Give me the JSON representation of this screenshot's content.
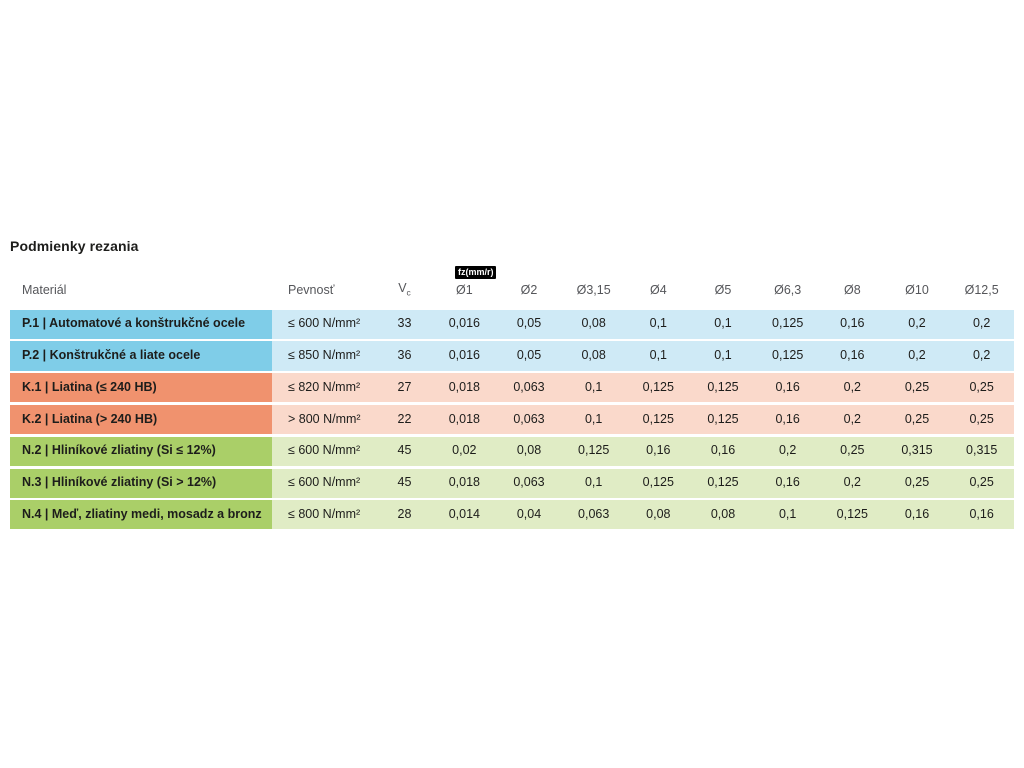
{
  "title": "Podmienky rezania",
  "chart_data": {
    "type": "table",
    "title": "Podmienky rezania",
    "unit_badge": "fz(mm/r)",
    "column_headers": {
      "material": "Materiál",
      "strength": "Pevnosť",
      "vc_base": "V",
      "vc_sub": "c",
      "diameters": [
        "Ø1",
        "Ø2",
        "Ø3,15",
        "Ø4",
        "Ø5",
        "Ø6,3",
        "Ø8",
        "Ø10",
        "Ø12,5"
      ]
    },
    "rows": [
      {
        "group": "steel",
        "material": "P.1 | Automatové a konštrukčné ocele",
        "strength": "≤ 600 N/mm²",
        "vc": "33",
        "fz_values": [
          "0,016",
          "0,05",
          "0,08",
          "0,1",
          "0,1",
          "0,125",
          "0,16",
          "0,2",
          "0,2"
        ]
      },
      {
        "group": "steel",
        "material": "P.2 | Konštrukčné a liate ocele",
        "strength": "≤ 850 N/mm²",
        "vc": "36",
        "fz_values": [
          "0,016",
          "0,05",
          "0,08",
          "0,1",
          "0,1",
          "0,125",
          "0,16",
          "0,2",
          "0,2"
        ]
      },
      {
        "group": "cast-iron",
        "material": "K.1 | Liatina (≤ 240 HB)",
        "strength": "≤ 820 N/mm²",
        "vc": "27",
        "fz_values": [
          "0,018",
          "0,063",
          "0,1",
          "0,125",
          "0,125",
          "0,16",
          "0,2",
          "0,25",
          "0,25"
        ]
      },
      {
        "group": "cast-iron",
        "material": "K.2 | Liatina (> 240 HB)",
        "strength": "> 800 N/mm²",
        "vc": "22",
        "fz_values": [
          "0,018",
          "0,063",
          "0,1",
          "0,125",
          "0,125",
          "0,16",
          "0,2",
          "0,25",
          "0,25"
        ]
      },
      {
        "group": "non-ferrous",
        "material": "N.2 | Hliníkové zliatiny (Si ≤ 12%)",
        "strength": "≤ 600 N/mm²",
        "vc": "45",
        "fz_values": [
          "0,02",
          "0,08",
          "0,125",
          "0,16",
          "0,16",
          "0,2",
          "0,25",
          "0,315",
          "0,315"
        ]
      },
      {
        "group": "non-ferrous",
        "material": "N.3 | Hliníkové zliatiny (Si > 12%)",
        "strength": "≤ 600 N/mm²",
        "vc": "45",
        "fz_values": [
          "0,018",
          "0,063",
          "0,1",
          "0,125",
          "0,125",
          "0,16",
          "0,2",
          "0,25",
          "0,25"
        ]
      },
      {
        "group": "non-ferrous",
        "material": "N.4 | Meď, zliatiny medi, mosadz a bronz",
        "strength": "≤ 800 N/mm²",
        "vc": "28",
        "fz_values": [
          "0,014",
          "0,04",
          "0,063",
          "0,08",
          "0,08",
          "0,1",
          "0,125",
          "0,16",
          "0,16"
        ]
      }
    ]
  },
  "colors": {
    "steel_dark": "#7fcde8",
    "steel_light": "#cfeaf6",
    "cast_iron_dark": "#f0926e",
    "cast_iron_light": "#fad9cb",
    "non_ferrous_dark": "#aacf68",
    "non_ferrous_light": "#e0ecc5",
    "badge_bg": "#000000",
    "badge_text": "#ffffff",
    "header_text": "#55565a",
    "body_text": "#1d1d1b"
  }
}
